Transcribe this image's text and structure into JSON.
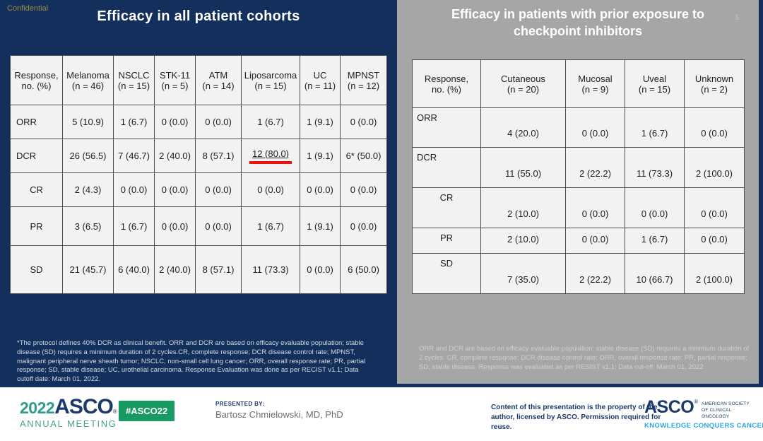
{
  "colors": {
    "navy_background": "#132F5B",
    "gray_panel": "#A6A6A6",
    "cell_background": "#F2F2F2",
    "highlight_red": "#EE1111",
    "confidential_gold": "#A38A3F",
    "badge_green": "#189A62",
    "asco_navy": "#1B3A6B",
    "tagline_blue": "#29A8E0"
  },
  "slide": {
    "confidential": "Confidential",
    "page_number": "5"
  },
  "left_panel": {
    "title": "Efficacy in all patient cohorts",
    "footnote": "*The protocol defines 40% DCR as clinical benefit. ORR and DCR are based on efficacy evaluable population; stable disease (SD) requires a minimum duration of 2 cycles.CR, complete response; DCR disease control rate; MPNST, malignant peripheral nerve sheath tumor; NSCLC, non-small cell lung cancer; ORR, overall response rate; PR, partial response; SD, stable disease; UC, urothelial carcinoma. Response Evaluation was done as per RECIST v1.1; Data cutoff date: March 01, 2022."
  },
  "right_panel": {
    "title": "Efficacy in patients with prior exposure to checkpoint inhibitors",
    "footnote": "ORR and DCR are based on efficacy evaluable population; stable disease (SD) requires a minimum duration of 2 cycles. CR, complete response; DCR disease control rate; ORR, overall response rate; PR, partial response; SD, stable disease. Response was evaluated as per RESIST v1.1; Data cut-off: March 01, 2022"
  },
  "left_table": {
    "headers": [
      "Response,\nno. (%)",
      "Melanoma\n(n = 46)",
      "NSCLC\n(n = 15)",
      "STK-11\n(n = 5)",
      "ATM\n(n = 14)",
      "Liposarcoma\n(n = 15)",
      "UC\n(n = 11)",
      "MPNST\n(n = 12)"
    ],
    "rows": [
      {
        "label": "ORR",
        "label_align": "left",
        "values": [
          "5 (10.9)",
          "1 (6.7)",
          "0 (0.0)",
          "0 (0.0)",
          "1 (6.7)",
          "1 (9.1)",
          "0 (0.0)"
        ]
      },
      {
        "label": "DCR",
        "label_align": "left",
        "values": [
          "26 (56.5)",
          "7 (46.7)",
          "2 (40.0)",
          "8 (57.1)",
          "12 (80.0)",
          "1 (9.1)",
          "6* (50.0)"
        ],
        "highlight_col": 4
      },
      {
        "label": "CR",
        "label_align": "center",
        "values": [
          "2 (4.3)",
          "0 (0.0)",
          "0 (0.0)",
          "0 (0.0)",
          "0 (0.0)",
          "0 (0.0)",
          "0 (0.0)"
        ]
      },
      {
        "label": "PR",
        "label_align": "center",
        "values": [
          "3 (6.5)",
          "1 (6.7)",
          "0 (0.0)",
          "0 (0.0)",
          "1 (6.7)",
          "1 (9.1)",
          "0 (0.0)"
        ]
      },
      {
        "label": "SD",
        "label_align": "center",
        "values": [
          "21 (45.7)",
          "6 (40.0)",
          "2 (40.0)",
          "8 (57.1)",
          "11 (73.3)",
          "0 (0.0)",
          "6 (50.0)"
        ]
      }
    ]
  },
  "right_table": {
    "headers": [
      "Response,\nno. (%)",
      "Cutaneous\n(n = 20)",
      "Mucosal\n(n = 9)",
      "Uveal\n(n = 15)",
      "Unknown\n(n = 2)"
    ],
    "rows": [
      {
        "label": "ORR",
        "label_align": "left",
        "values": [
          "4 (20.0)",
          "0 (0.0)",
          "1 (6.7)",
          "0 (0.0)"
        ]
      },
      {
        "label": "DCR",
        "label_align": "left",
        "values": [
          "11 (55.0)",
          "2 (22.2)",
          "11 (73.3)",
          "2 (100.0)"
        ]
      },
      {
        "label": "CR",
        "label_align": "center",
        "values": [
          "2 (10.0)",
          "0 (0.0)",
          "0 (0.0)",
          "0 (0.0)"
        ]
      },
      {
        "label": "PR",
        "label_align": "center",
        "values": [
          "2 (10.0)",
          "0 (0.0)",
          "1 (6.7)",
          "0 (0.0)"
        ]
      },
      {
        "label": "SD",
        "label_align": "center",
        "values": [
          "7 (35.0)",
          "2 (22.2)",
          "10 (66.7)",
          "2 (100.0)"
        ]
      }
    ]
  },
  "footer": {
    "logo_year": "2022",
    "logo_asco": "ASCO",
    "logo_reg": "®",
    "logo_annual_meeting": "ANNUAL MEETING",
    "hashtag": "#ASCO22",
    "presented_by_label": "PRESENTED BY:",
    "presenter_name": "Bartosz Chmielowski, MD, PhD",
    "content_note": "Content of this presentation is the property of the author, licensed by ASCO. Permission required for reuse.",
    "asco_word": "ASCO",
    "asco_reg": "®",
    "asco_society": "AMERICAN SOCIETY OF CLINICAL ONCOLOGY",
    "asco_tagline": "KNOWLEDGE CONQUERS CANCER"
  }
}
